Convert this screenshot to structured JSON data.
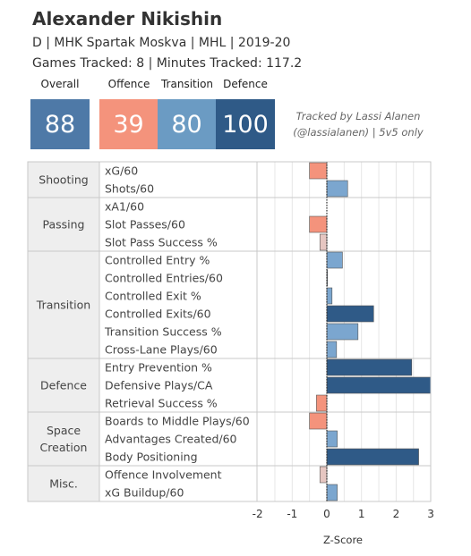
{
  "header": {
    "player_name": "Alexander Nikishin",
    "subtitle": "D | MHK Spartak Moskva | MHL | 2019-20",
    "tracking": "Games Tracked: 8 | Minutes Tracked: 117.2",
    "credit_line1": "Tracked by Lassi Alanen",
    "credit_line2": "(@lassialanen) | 5v5 only"
  },
  "summary": {
    "overall_label": "Overall",
    "overall_value": "88",
    "overall_color": "#4e79a7",
    "offence_label": "Offence",
    "offence_value": "39",
    "offence_color": "#f4937c",
    "transition_label": "Transition",
    "transition_value": "80",
    "transition_color": "#6b9bc3",
    "defence_label": "Defence",
    "defence_value": "100",
    "defence_color": "#2f5a87"
  },
  "chart_data": {
    "type": "bar",
    "orientation": "horizontal",
    "xlabel": "Z-Score",
    "xlim": [
      -2,
      3
    ],
    "xticks": [
      -2,
      -1,
      0,
      1,
      2,
      3
    ],
    "grid": true,
    "colors": {
      "neg_strong": "#f4937c",
      "neg_light": "#e6c6c1",
      "pos_light": "#7ba6cf",
      "pos_strong": "#2f5a87"
    },
    "groups": [
      {
        "name": "Shooting",
        "metrics": [
          {
            "label": "xG/60",
            "value": -0.5
          },
          {
            "label": "Shots/60",
            "value": 0.6
          }
        ]
      },
      {
        "name": "Passing",
        "metrics": [
          {
            "label": "xA1/60",
            "value": 0.0
          },
          {
            "label": "Slot Passes/60",
            "value": -0.5
          },
          {
            "label": "Slot Pass Success %",
            "value": -0.2
          }
        ]
      },
      {
        "name": "Transition",
        "metrics": [
          {
            "label": "Controlled Entry %",
            "value": 0.45
          },
          {
            "label": "Controlled Entries/60",
            "value": 0.02
          },
          {
            "label": "Controlled Exit %",
            "value": 0.15
          },
          {
            "label": "Controlled Exits/60",
            "value": 1.35
          },
          {
            "label": "Transition Success %",
            "value": 0.9
          },
          {
            "label": "Cross-Lane Plays/60",
            "value": 0.28
          }
        ]
      },
      {
        "name": "Defence",
        "metrics": [
          {
            "label": "Entry Prevention %",
            "value": 2.45
          },
          {
            "label": "Defensive Plays/CA",
            "value": 3.1
          },
          {
            "label": "Retrieval Success %",
            "value": -0.3
          }
        ]
      },
      {
        "name": "Space Creation",
        "name_lines": [
          "Space",
          "Creation"
        ],
        "metrics": [
          {
            "label": "Boards to Middle Plays/60",
            "value": -0.5
          },
          {
            "label": "Advantages Created/60",
            "value": 0.3
          },
          {
            "label": "Body Positioning",
            "value": 2.65
          }
        ]
      },
      {
        "name": "Misc.",
        "metrics": [
          {
            "label": "Offence Involvement",
            "value": -0.2
          },
          {
            "label": "xG Buildup/60",
            "value": 0.3
          }
        ]
      }
    ]
  }
}
